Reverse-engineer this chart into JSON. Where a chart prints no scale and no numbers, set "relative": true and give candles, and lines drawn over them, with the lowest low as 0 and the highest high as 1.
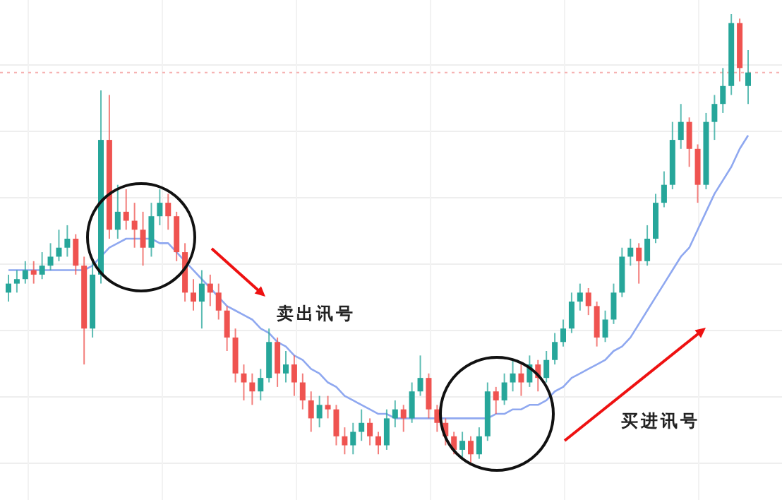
{
  "chart_data": {
    "type": "candlestick",
    "relative": true,
    "grid": true,
    "categories": [
      null,
      null,
      null,
      null,
      null,
      null,
      null,
      null,
      null,
      null,
      null,
      null,
      null,
      null,
      null,
      null,
      null,
      null,
      null,
      null,
      null,
      null,
      null,
      null,
      null,
      null,
      null,
      null,
      null,
      null,
      null,
      null,
      null,
      null,
      null,
      null,
      null,
      null,
      null,
      null,
      null,
      null,
      null,
      null,
      null,
      null,
      null,
      null,
      null,
      null,
      null,
      null,
      null,
      null,
      null,
      null,
      null,
      null,
      null,
      null,
      null,
      null,
      null,
      null,
      null,
      null,
      null,
      null,
      null,
      null,
      null,
      null,
      null,
      null,
      null,
      null,
      null,
      null,
      null,
      null,
      null,
      null,
      null,
      null,
      null,
      null,
      null,
      null,
      null
    ],
    "ohlc": [
      [
        0.38,
        0.42,
        0.36,
        0.4
      ],
      [
        0.4,
        0.43,
        0.38,
        0.41
      ],
      [
        0.41,
        0.45,
        0.4,
        0.43
      ],
      [
        0.43,
        0.45,
        0.4,
        0.42
      ],
      [
        0.42,
        0.47,
        0.41,
        0.44
      ],
      [
        0.44,
        0.49,
        0.43,
        0.46
      ],
      [
        0.46,
        0.52,
        0.45,
        0.48
      ],
      [
        0.48,
        0.53,
        0.46,
        0.5
      ],
      [
        0.5,
        0.51,
        0.42,
        0.44
      ],
      [
        0.44,
        0.46,
        0.22,
        0.3
      ],
      [
        0.3,
        0.45,
        0.28,
        0.42
      ],
      [
        0.42,
        0.83,
        0.4,
        0.72
      ],
      [
        0.72,
        0.82,
        0.5,
        0.52
      ],
      [
        0.52,
        0.62,
        0.5,
        0.56
      ],
      [
        0.56,
        0.61,
        0.52,
        0.54
      ],
      [
        0.54,
        0.58,
        0.48,
        0.52
      ],
      [
        0.52,
        0.56,
        0.44,
        0.48
      ],
      [
        0.48,
        0.58,
        0.46,
        0.55
      ],
      [
        0.55,
        0.61,
        0.53,
        0.58
      ],
      [
        0.58,
        0.6,
        0.52,
        0.55
      ],
      [
        0.55,
        0.56,
        0.45,
        0.47
      ],
      [
        0.47,
        0.49,
        0.36,
        0.38
      ],
      [
        0.38,
        0.41,
        0.34,
        0.36
      ],
      [
        0.36,
        0.43,
        0.3,
        0.4
      ],
      [
        0.4,
        0.42,
        0.35,
        0.38
      ],
      [
        0.38,
        0.4,
        0.32,
        0.34
      ],
      [
        0.34,
        0.35,
        0.25,
        0.28
      ],
      [
        0.28,
        0.3,
        0.18,
        0.2
      ],
      [
        0.2,
        0.22,
        0.14,
        0.18
      ],
      [
        0.18,
        0.2,
        0.13,
        0.16
      ],
      [
        0.16,
        0.21,
        0.14,
        0.19
      ],
      [
        0.19,
        0.3,
        0.18,
        0.27
      ],
      [
        0.27,
        0.28,
        0.17,
        0.2
      ],
      [
        0.2,
        0.25,
        0.18,
        0.22
      ],
      [
        0.22,
        0.24,
        0.15,
        0.18
      ],
      [
        0.18,
        0.2,
        0.12,
        0.14
      ],
      [
        0.14,
        0.16,
        0.07,
        0.1
      ],
      [
        0.1,
        0.15,
        0.08,
        0.13
      ],
      [
        0.13,
        0.15,
        0.1,
        0.12
      ],
      [
        0.12,
        0.13,
        0.04,
        0.06
      ],
      [
        0.06,
        0.08,
        0.02,
        0.04
      ],
      [
        0.04,
        0.09,
        0.02,
        0.07
      ],
      [
        0.07,
        0.12,
        0.05,
        0.09
      ],
      [
        0.09,
        0.1,
        0.04,
        0.06
      ],
      [
        0.06,
        0.07,
        0.02,
        0.04
      ],
      [
        0.04,
        0.12,
        0.03,
        0.1
      ],
      [
        0.1,
        0.14,
        0.08,
        0.12
      ],
      [
        0.12,
        0.13,
        0.07,
        0.1
      ],
      [
        0.1,
        0.18,
        0.09,
        0.16
      ],
      [
        0.16,
        0.24,
        0.15,
        0.19
      ],
      [
        0.19,
        0.2,
        0.1,
        0.12
      ],
      [
        0.12,
        0.13,
        0.07,
        0.09
      ],
      [
        0.09,
        0.1,
        0.04,
        0.06
      ],
      [
        0.06,
        0.07,
        0.02,
        0.03
      ],
      [
        0.03,
        0.07,
        0.01,
        0.05
      ],
      [
        0.05,
        0.06,
        0.0,
        0.02
      ],
      [
        0.02,
        0.08,
        0.01,
        0.06
      ],
      [
        0.06,
        0.18,
        0.05,
        0.16
      ],
      [
        0.16,
        0.17,
        0.11,
        0.14
      ],
      [
        0.14,
        0.2,
        0.13,
        0.18
      ],
      [
        0.18,
        0.23,
        0.16,
        0.2
      ],
      [
        0.2,
        0.22,
        0.15,
        0.18
      ],
      [
        0.18,
        0.24,
        0.17,
        0.22
      ],
      [
        0.22,
        0.23,
        0.16,
        0.19
      ],
      [
        0.19,
        0.25,
        0.18,
        0.23
      ],
      [
        0.23,
        0.29,
        0.22,
        0.27
      ],
      [
        0.27,
        0.32,
        0.26,
        0.3
      ],
      [
        0.3,
        0.38,
        0.29,
        0.36
      ],
      [
        0.36,
        0.4,
        0.34,
        0.38
      ],
      [
        0.38,
        0.39,
        0.33,
        0.35
      ],
      [
        0.35,
        0.36,
        0.26,
        0.28
      ],
      [
        0.28,
        0.34,
        0.27,
        0.32
      ],
      [
        0.32,
        0.4,
        0.31,
        0.38
      ],
      [
        0.38,
        0.48,
        0.37,
        0.46
      ],
      [
        0.46,
        0.5,
        0.44,
        0.48
      ],
      [
        0.48,
        0.49,
        0.4,
        0.45
      ],
      [
        0.45,
        0.53,
        0.44,
        0.5
      ],
      [
        0.5,
        0.6,
        0.49,
        0.58
      ],
      [
        0.58,
        0.65,
        0.57,
        0.62
      ],
      [
        0.62,
        0.76,
        0.61,
        0.72
      ],
      [
        0.72,
        0.8,
        0.7,
        0.76
      ],
      [
        0.76,
        0.77,
        0.66,
        0.7
      ],
      [
        0.7,
        0.71,
        0.58,
        0.62
      ],
      [
        0.62,
        0.78,
        0.61,
        0.76
      ],
      [
        0.76,
        0.82,
        0.72,
        0.8
      ],
      [
        0.8,
        0.88,
        0.78,
        0.84
      ],
      [
        0.84,
        1.0,
        0.82,
        0.98
      ],
      [
        0.98,
        0.99,
        0.85,
        0.88
      ],
      [
        0.84,
        0.92,
        0.8,
        0.87
      ]
    ],
    "series": [
      {
        "type": "line",
        "color": "#8fa8f0",
        "values": [
          0.43,
          0.43,
          0.43,
          0.43,
          0.43,
          0.43,
          0.43,
          0.43,
          0.43,
          0.43,
          0.44,
          0.46,
          0.48,
          0.49,
          0.5,
          0.5,
          0.5,
          0.5,
          0.49,
          0.49,
          0.47,
          0.45,
          0.43,
          0.41,
          0.39,
          0.37,
          0.35,
          0.34,
          0.33,
          0.32,
          0.3,
          0.29,
          0.27,
          0.26,
          0.24,
          0.23,
          0.21,
          0.2,
          0.18,
          0.17,
          0.15,
          0.14,
          0.13,
          0.12,
          0.11,
          0.11,
          0.1,
          0.1,
          0.1,
          0.1,
          0.1,
          0.1,
          0.1,
          0.1,
          0.1,
          0.1,
          0.1,
          0.1,
          0.11,
          0.11,
          0.12,
          0.12,
          0.13,
          0.13,
          0.14,
          0.16,
          0.17,
          0.19,
          0.2,
          0.21,
          0.22,
          0.23,
          0.25,
          0.26,
          0.28,
          0.31,
          0.34,
          0.37,
          0.4,
          0.43,
          0.46,
          0.48,
          0.52,
          0.56,
          0.6,
          0.63,
          0.66,
          0.7,
          0.73
        ]
      }
    ],
    "ref_lines": [
      {
        "axis": "y",
        "value": 0.87,
        "color": "#f6b0b0",
        "line_style": "dotted"
      }
    ],
    "annotations": [
      "卖出讯号",
      "买进讯号"
    ]
  }
}
